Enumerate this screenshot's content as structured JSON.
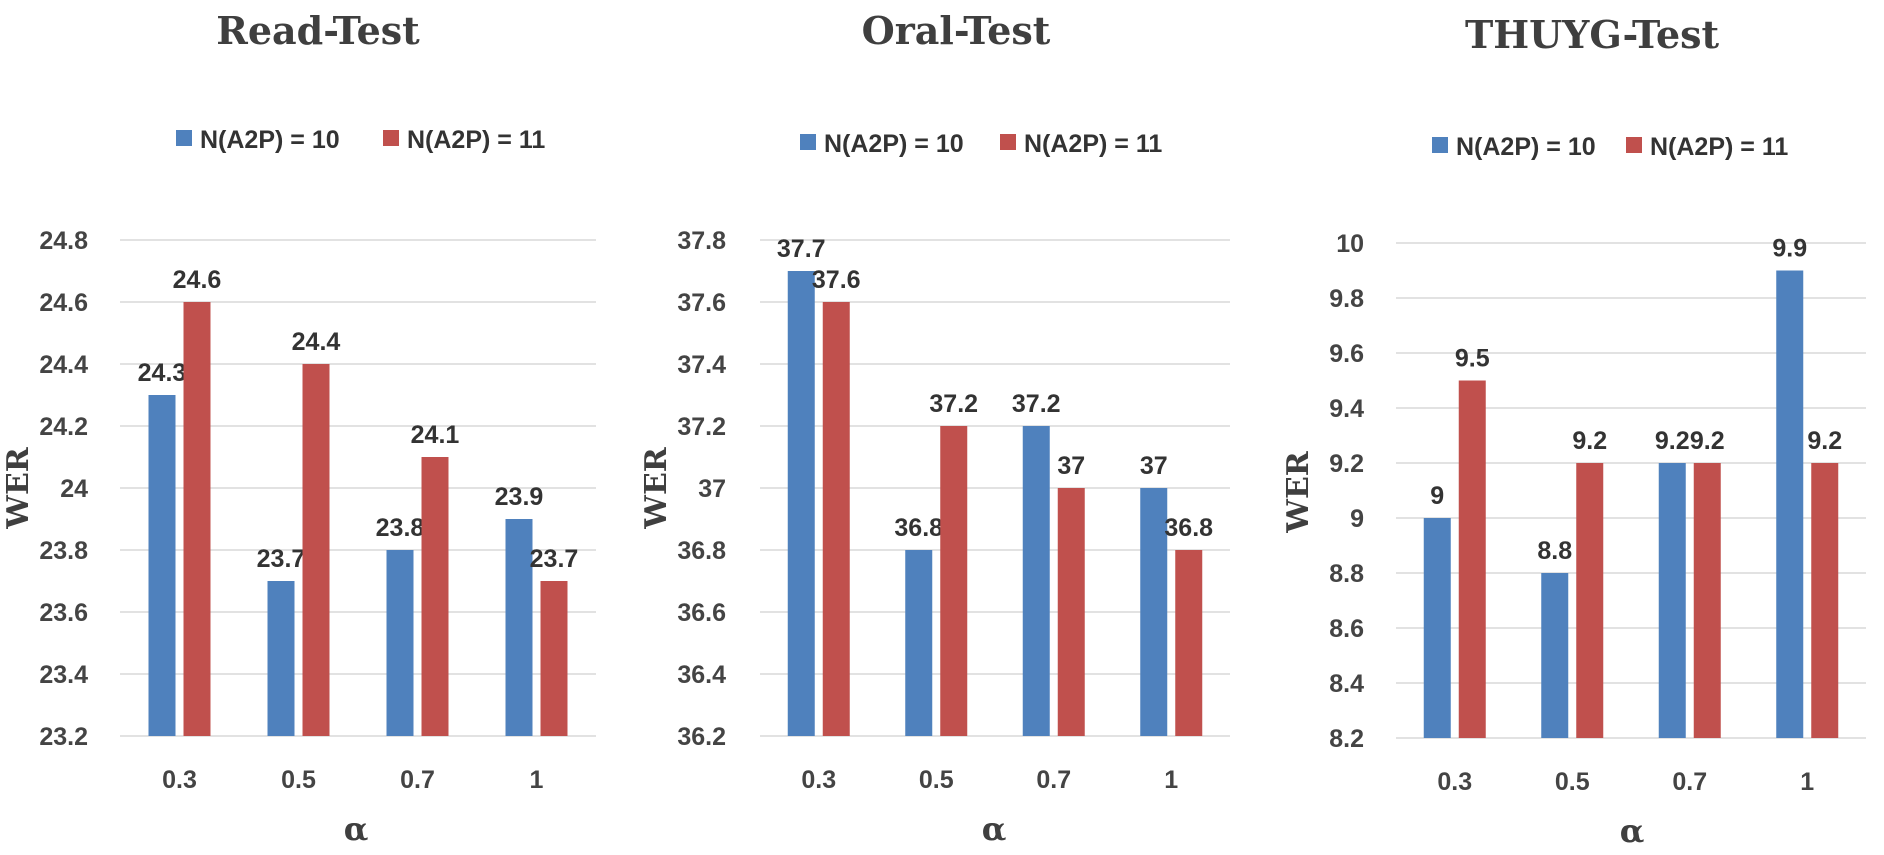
{
  "chart_data": [
    {
      "type": "bar",
      "title": "Read-Test",
      "xlabel": "α",
      "ylabel": "WER",
      "categories": [
        "0.3",
        "0.5",
        "0.7",
        "1"
      ],
      "ylim": [
        23.2,
        24.8
      ],
      "yticks": [
        "23.2",
        "23.4",
        "23.6",
        "23.8",
        "24",
        "24.2",
        "24.4",
        "24.6",
        "24.8"
      ],
      "grid": true,
      "legend": "top",
      "series": [
        {
          "name": "N(A2P) = 10",
          "color": "#4f81bd",
          "values": [
            24.3,
            23.7,
            23.8,
            23.9
          ],
          "labels": [
            "24.3",
            "23.7",
            "23.8",
            "23.9"
          ]
        },
        {
          "name": "N(A2P) = 11",
          "color": "#c0504d",
          "values": [
            24.6,
            24.4,
            24.1,
            23.7
          ],
          "labels": [
            "24.6",
            "24.4",
            "24.1",
            "23.7"
          ]
        }
      ]
    },
    {
      "type": "bar",
      "title": "Oral-Test",
      "xlabel": "α",
      "ylabel": "WER",
      "categories": [
        "0.3",
        "0.5",
        "0.7",
        "1"
      ],
      "ylim": [
        36.2,
        37.8
      ],
      "yticks": [
        "36.2",
        "36.4",
        "36.6",
        "36.8",
        "37",
        "37.2",
        "37.4",
        "37.6",
        "37.8"
      ],
      "grid": true,
      "legend": "top",
      "series": [
        {
          "name": "N(A2P) = 10",
          "color": "#4f81bd",
          "values": [
            37.7,
            36.8,
            37.2,
            37.0
          ],
          "labels": [
            "37.7",
            "36.8",
            "37.2",
            "37"
          ]
        },
        {
          "name": "N(A2P) = 11",
          "color": "#c0504d",
          "values": [
            37.6,
            37.2,
            37.0,
            36.8
          ],
          "labels": [
            "37.6",
            "37.2",
            "37",
            "36.8"
          ]
        }
      ]
    },
    {
      "type": "bar",
      "title": "THUYG-Test",
      "xlabel": "α",
      "ylabel": "WER",
      "categories": [
        "0.3",
        "0.5",
        "0.7",
        "1"
      ],
      "ylim": [
        8.2,
        10
      ],
      "yticks": [
        "8.2",
        "8.4",
        "8.6",
        "8.8",
        "9",
        "9.2",
        "9.4",
        "9.6",
        "9.8",
        "10"
      ],
      "grid": true,
      "legend": "top",
      "series": [
        {
          "name": "N(A2P) = 10",
          "color": "#4f81bd",
          "values": [
            9.0,
            8.8,
            9.2,
            9.9
          ],
          "labels": [
            "9",
            "8.8",
            "9.2",
            "9.9"
          ]
        },
        {
          "name": "N(A2P) = 11",
          "color": "#c0504d",
          "values": [
            9.5,
            9.2,
            9.2,
            9.2
          ],
          "labels": [
            "9.5",
            "9.2",
            "9.2",
            "9.2"
          ]
        }
      ]
    }
  ]
}
